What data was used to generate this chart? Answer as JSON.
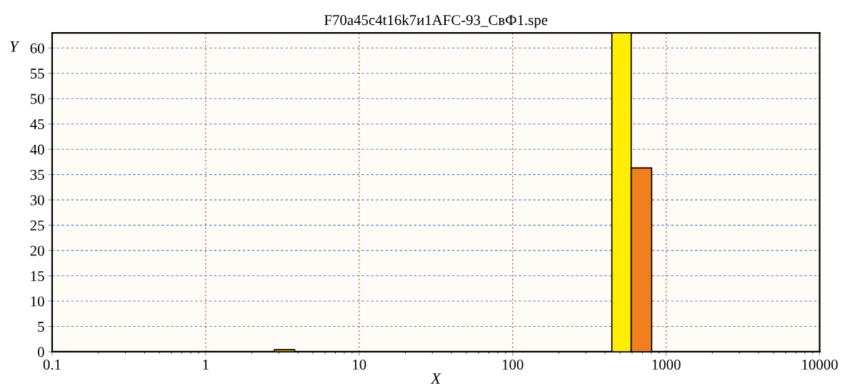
{
  "chart_data": {
    "type": "histogram",
    "title": "F70a45c4t16k7и1AFC-93_СвФ1.spe",
    "xlabel": "X",
    "ylabel": "Y",
    "bins": [
      2.8,
      3.8,
      443,
      592,
      805
    ],
    "values": [
      0.4,
      0,
      63,
      36.3
    ],
    "colors": [
      "#f5b800",
      "#f5b800",
      "#ffee00",
      "#f07f1e"
    ],
    "log": "x",
    "xlim": [
      0.1,
      10000
    ],
    "xticks": [
      0.1,
      1,
      10,
      100,
      1000,
      10000
    ],
    "ylim": [
      0,
      63
    ],
    "yticks": [
      0,
      5,
      10,
      15,
      20,
      25,
      30,
      35,
      40,
      45,
      50,
      55,
      60
    ],
    "grid": true
  }
}
